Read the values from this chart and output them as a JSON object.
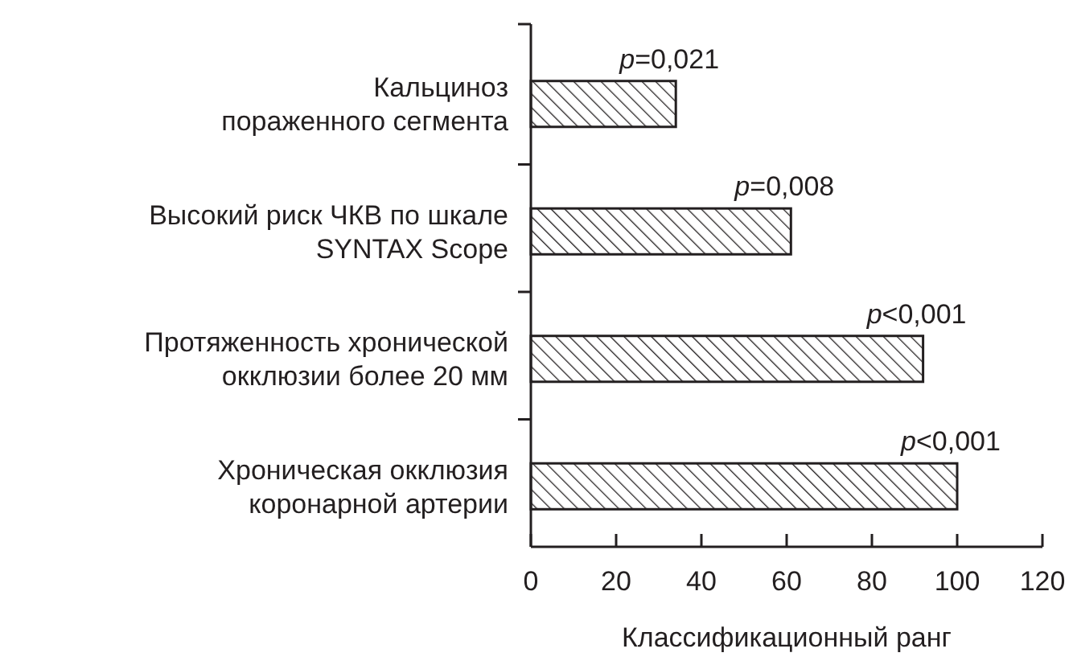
{
  "chart_data": {
    "type": "bar",
    "orientation": "horizontal",
    "xlabel": "Классификационный ранг",
    "categories": [
      "Кальциноз\nпораженного сегмента",
      "Высокий риск ЧКВ по шкале\nSYNTAX Scope",
      "Протяженность хронической\nокклюзии более 20 мм",
      "Хроническая окклюзия\nкоронарной артерии"
    ],
    "values": [
      34,
      61,
      92,
      100
    ],
    "color": "#231f20",
    "xlim": [
      0,
      120
    ],
    "xticks": [
      0,
      20,
      40,
      60,
      80,
      100,
      120
    ],
    "grid": false,
    "annotations": [
      {
        "text": "p=0,021",
        "x": 34,
        "y": "Кальциноз\nпораженного сегмента"
      },
      {
        "text": "p=0,008",
        "x": 61,
        "y": "Высокий риск ЧКВ по шкале\nSYNTAX Scope"
      },
      {
        "text": "p<0,001",
        "x": 92,
        "y": "Протяженность хронической\nокклюзии более 20 мм"
      },
      {
        "text": "p<0,001",
        "x": 100,
        "y": "Хроническая окклюзия\nкоронарной артерии"
      }
    ]
  }
}
